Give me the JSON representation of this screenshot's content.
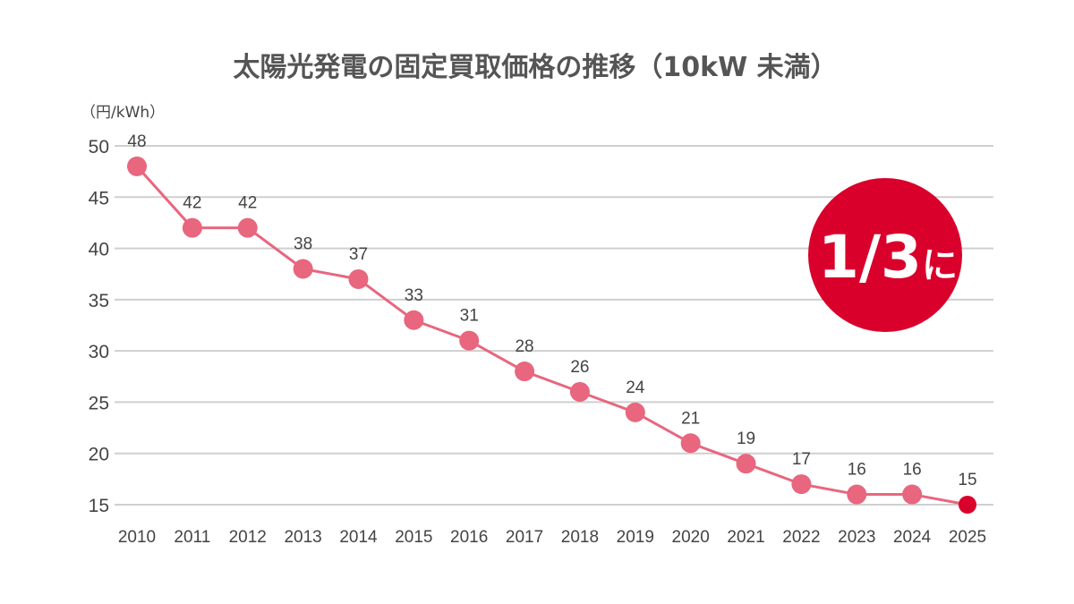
{
  "chart_data": {
    "type": "line",
    "title": "太陽光発電の固定買取価格の推移（10kW 未満）",
    "ylabel": "（円/kWh）",
    "xlabel": "",
    "x": [
      "2010",
      "2011",
      "2012",
      "2013",
      "2014",
      "2015",
      "2016",
      "2017",
      "2018",
      "2019",
      "2020",
      "2021",
      "2022",
      "2023",
      "2024",
      "2025"
    ],
    "series": [
      {
        "values": [
          48,
          42,
          42,
          38,
          37,
          33,
          31,
          28,
          26,
          24,
          21,
          19,
          17,
          16,
          16,
          15
        ],
        "color": "#e8667e",
        "highlight_last_color": "#d9002b"
      }
    ],
    "data_labels": [
      "48",
      "42",
      "42",
      "38",
      "37",
      "33",
      "31",
      "28",
      "26",
      "24",
      "21",
      "19",
      "17",
      "16",
      "16",
      "15"
    ],
    "ylim": [
      15,
      50
    ],
    "yticks": [
      50,
      45,
      40,
      35,
      30,
      25,
      20,
      15
    ],
    "grid": true,
    "legend": "none",
    "annotation": {
      "main": "1/3",
      "suffix": "に",
      "color": "#d9002b",
      "placement": "top-right"
    }
  }
}
